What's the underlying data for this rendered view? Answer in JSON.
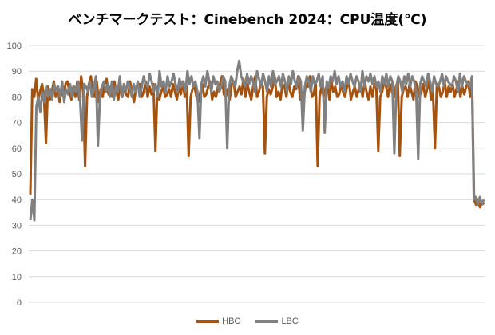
{
  "chart_data": {
    "type": "line",
    "title": "ベンチマークテスト：Cinebench 2024：CPU温度(℃)",
    "xlabel": "",
    "ylabel": "",
    "ylim": [
      0,
      100
    ],
    "yticks": [
      "0",
      "10",
      "20",
      "30",
      "40",
      "50",
      "60",
      "70",
      "80",
      "90",
      "100"
    ],
    "grid": true,
    "legend_position": "bottom",
    "series": [
      {
        "name": "HBC",
        "color": "#A5520E",
        "values": [
          42,
          83,
          80,
          87,
          79,
          82,
          85,
          80,
          62,
          84,
          79,
          82,
          86,
          80,
          84,
          78,
          83,
          80,
          85,
          86,
          82,
          79,
          84,
          80,
          86,
          79,
          88,
          82,
          53,
          80,
          85,
          88,
          81,
          80,
          86,
          78,
          83,
          80,
          85,
          87,
          81,
          84,
          80,
          86,
          82,
          79,
          85,
          80,
          84,
          81,
          80,
          86,
          82,
          78,
          83,
          84,
          85,
          80,
          82,
          86,
          80,
          84,
          81,
          85,
          59,
          83,
          79,
          82,
          84,
          80,
          81,
          83,
          80,
          85,
          82,
          79,
          84,
          81,
          86,
          80,
          84,
          57,
          80,
          83,
          84,
          80,
          78,
          82,
          85,
          80,
          81,
          84,
          86,
          79,
          82,
          80,
          84,
          85,
          88,
          81,
          80,
          83,
          79,
          85,
          86,
          80,
          82,
          84,
          81,
          87,
          80,
          85,
          82,
          79,
          84,
          88,
          80,
          82,
          86,
          84,
          58,
          80,
          83,
          81,
          84,
          88,
          80,
          82,
          79,
          85,
          84,
          80,
          86,
          82,
          80,
          84,
          83,
          88,
          79,
          82,
          80,
          85,
          84,
          88,
          80,
          81,
          86,
          53,
          80,
          84,
          80,
          83,
          85,
          79,
          86,
          82,
          84,
          80,
          81,
          85,
          82,
          80,
          84,
          86,
          79,
          82,
          84,
          80,
          83,
          85,
          80,
          86,
          82,
          79,
          84,
          80,
          85,
          84,
          59,
          80,
          82,
          86,
          84,
          80,
          85,
          82,
          80,
          84,
          86,
          57,
          80,
          83,
          84,
          80,
          85,
          82,
          79,
          86,
          84,
          80,
          82,
          85,
          80,
          83,
          86,
          79,
          82,
          60,
          85,
          84,
          80,
          82,
          86,
          80,
          84,
          82,
          85,
          80,
          83,
          86,
          80,
          84,
          81,
          84,
          86,
          80,
          85,
          40,
          38,
          40,
          37,
          39,
          38
        ]
      },
      {
        "name": "LBC",
        "color": "#808080",
        "values": [
          32,
          40,
          32,
          76,
          80,
          74,
          82,
          78,
          84,
          80,
          83,
          79,
          85,
          82,
          84,
          80,
          86,
          78,
          83,
          81,
          85,
          80,
          84,
          82,
          86,
          79,
          63,
          85,
          84,
          82,
          86,
          80,
          84,
          88,
          61,
          80,
          84,
          86,
          82,
          85,
          80,
          86,
          79,
          84,
          82,
          88,
          80,
          85,
          82,
          86,
          84,
          80,
          85,
          82,
          86,
          80,
          84,
          88,
          85,
          84,
          89,
          86,
          82,
          85,
          80,
          90,
          84,
          86,
          82,
          88,
          84,
          86,
          89,
          85,
          82,
          87,
          84,
          86,
          82,
          90,
          85,
          88,
          84,
          86,
          82,
          64,
          85,
          88,
          84,
          90,
          86,
          82,
          88,
          85,
          86,
          82,
          84,
          88,
          86,
          60,
          84,
          88,
          86,
          84,
          90,
          94,
          88,
          86,
          84,
          89,
          85,
          88,
          86,
          82,
          90,
          87,
          84,
          89,
          86,
          82,
          88,
          84,
          90,
          85,
          86,
          88,
          84,
          89,
          86,
          82,
          88,
          85,
          90,
          86,
          84,
          88,
          86,
          67,
          84,
          88,
          86,
          82,
          88,
          85,
          86,
          89,
          84,
          88,
          66,
          86,
          84,
          88,
          86,
          90,
          85,
          88,
          84,
          86,
          82,
          88,
          85,
          89,
          86,
          84,
          88,
          86,
          82,
          90,
          84,
          88,
          86,
          89,
          85,
          88,
          84,
          86,
          82,
          88,
          85,
          89,
          84,
          88,
          86,
          58,
          84,
          88,
          86,
          82,
          88,
          85,
          89,
          84,
          88,
          86,
          82,
          56,
          85,
          88,
          86,
          84,
          89,
          86,
          82,
          88,
          85,
          84,
          86,
          89,
          84,
          88,
          86,
          85,
          84,
          88,
          86,
          82,
          89,
          84,
          88,
          86,
          85,
          84,
          88,
          40,
          41,
          38,
          41,
          38,
          40
        ]
      }
    ]
  }
}
